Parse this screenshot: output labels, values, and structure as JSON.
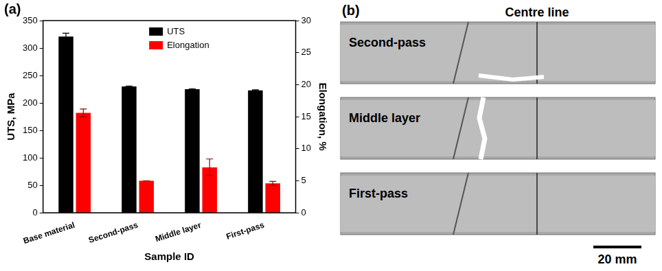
{
  "chart_data": {
    "type": "bar",
    "panel_label": "(a)",
    "x_label": "Sample ID",
    "y_label": "UTS, MPa",
    "y2_label": "Elongation, %",
    "categories": [
      "Base material",
      "Second-pass",
      "Middle layer",
      "First-pass"
    ],
    "series": [
      {
        "name": "UTS",
        "color": "#000000",
        "values": [
          321,
          230,
          225,
          223
        ],
        "errors": [
          6,
          1,
          1,
          1
        ]
      },
      {
        "name": "Elongation",
        "color": "#ff0000",
        "axis": "y2",
        "values": [
          15.6,
          5.0,
          7.1,
          4.6
        ],
        "errors": [
          0.6,
          0,
          1.3,
          0.3
        ]
      }
    ],
    "ylim": [
      0,
      350
    ],
    "yticks": [
      0,
      50,
      100,
      150,
      200,
      250,
      300,
      350
    ],
    "y2lim": [
      0,
      30
    ],
    "y2ticks": [
      0,
      5,
      10,
      15,
      20,
      25,
      30
    ],
    "grid": false,
    "legend": "top"
  },
  "photo": {
    "panel_label": "(b)",
    "title": "Centre line",
    "samples": [
      "Second-pass",
      "Middle layer",
      "First-pass"
    ],
    "scale_bar": "20 mm"
  }
}
